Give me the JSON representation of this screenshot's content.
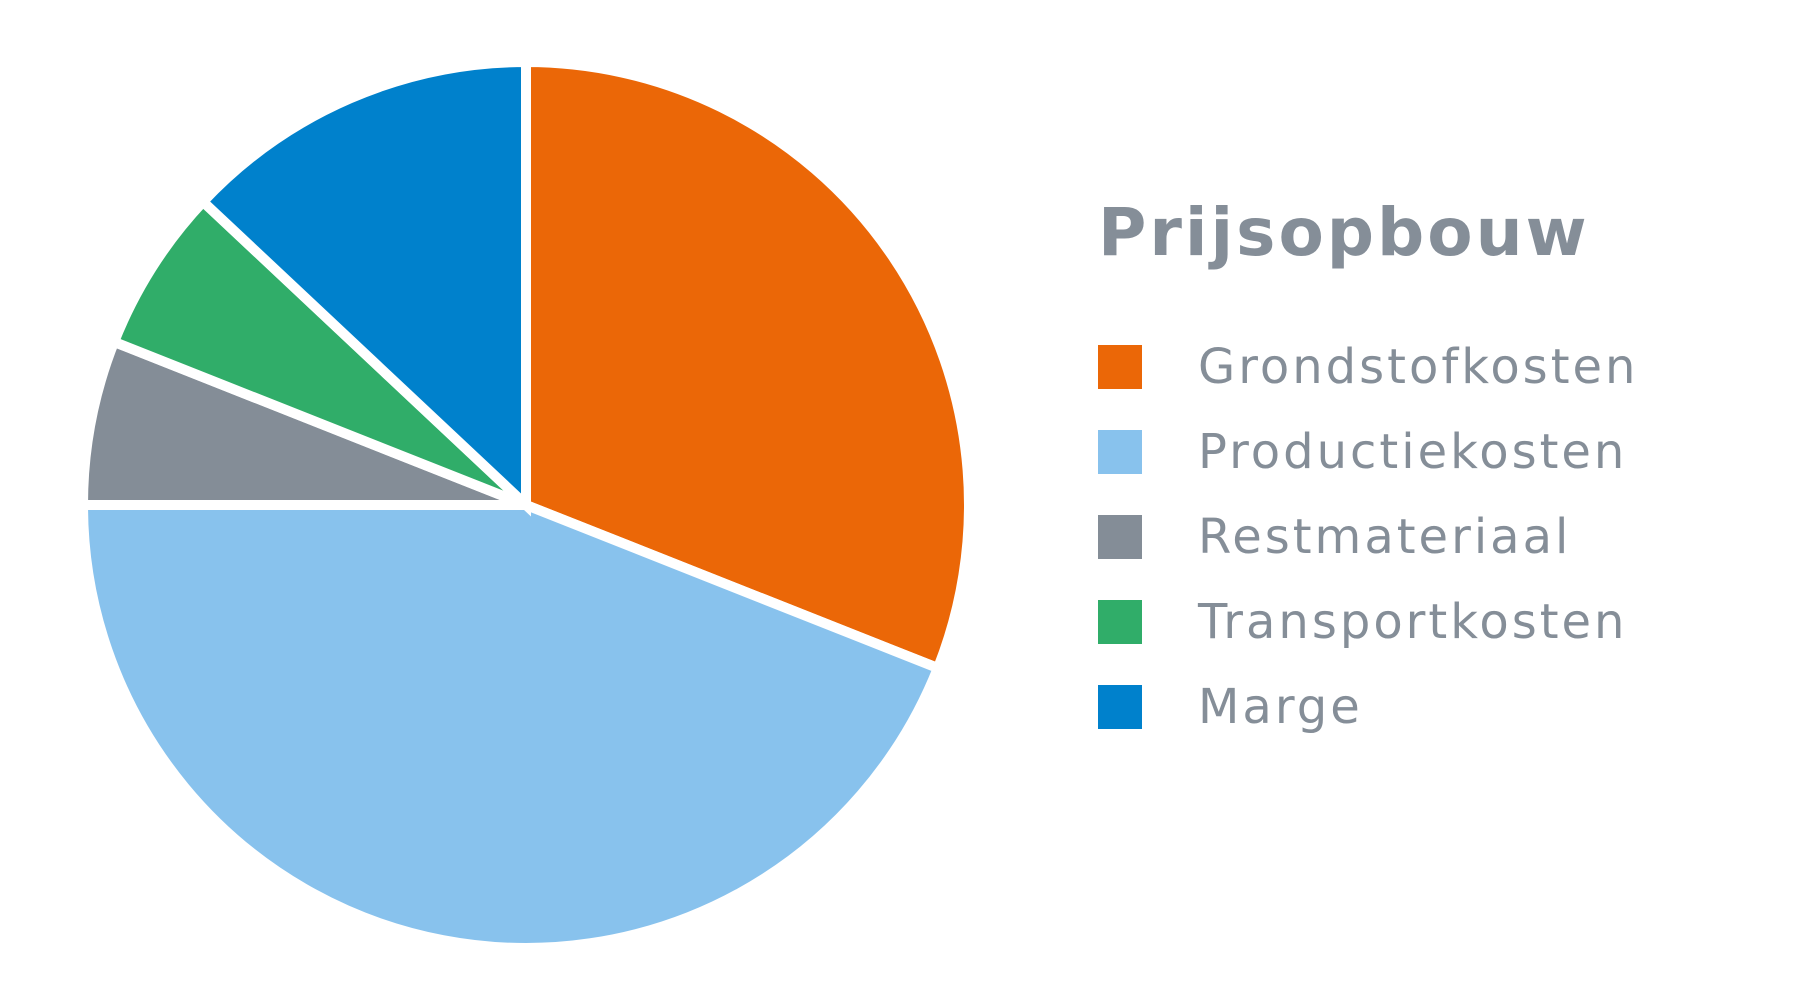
{
  "chart_data": {
    "type": "pie",
    "title": "Prijsopbouw",
    "categories": [
      "Grondstofkosten",
      "Productiekosten",
      "Restmateriaal",
      "Transportkosten",
      "Marge"
    ],
    "values": [
      31,
      44,
      6,
      6,
      13
    ],
    "colors": [
      "#eb6707",
      "#88c2ed",
      "#848d97",
      "#30ad69",
      "#0081cc"
    ],
    "start_angle_deg": 0,
    "direction": "clockwise",
    "legend": "right"
  }
}
